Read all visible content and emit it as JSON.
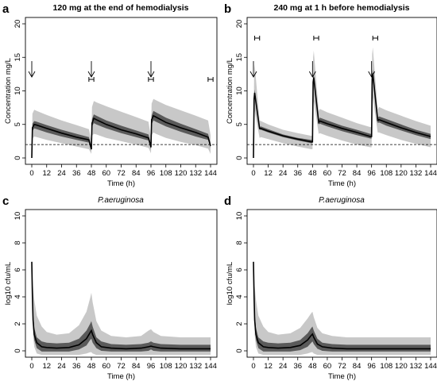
{
  "chart_data": [
    {
      "id": "a",
      "panel_letter": "a",
      "type": "line",
      "title": "120 mg at the end of hemodialysis",
      "title_style": "bold",
      "xlabel": "Time (h)",
      "ylabel": "Concentration mg/L",
      "xlim": [
        0,
        144
      ],
      "ylim": [
        0,
        20
      ],
      "xticks": [
        0,
        12,
        24,
        36,
        48,
        60,
        72,
        84,
        96,
        108,
        120,
        132,
        144
      ],
      "yticks": [
        0,
        5,
        10,
        15,
        20
      ],
      "reference_line": {
        "y": 2,
        "style": "dashed"
      },
      "dose_arrows_x": [
        0,
        48,
        96
      ],
      "dialysis_intervals": [
        [
          46,
          50
        ],
        [
          94,
          98
        ],
        [
          142,
          146
        ]
      ],
      "series": [
        {
          "role": "outer_band",
          "color": "#c8c8c8",
          "x": [
            0,
            0.5,
            2,
            4,
            12,
            24,
            36,
            46,
            48,
            48.5,
            50,
            52,
            60,
            72,
            84,
            94,
            96,
            96.5,
            98,
            100,
            108,
            120,
            132,
            142,
            144
          ],
          "lower": [
            0,
            2.9,
            3.2,
            3.1,
            2.7,
            2.2,
            1.7,
            1.3,
            0.6,
            3.3,
            3.6,
            3.5,
            3.0,
            2.5,
            2.0,
            1.5,
            0.7,
            3.4,
            3.8,
            3.6,
            3.0,
            2.4,
            1.9,
            1.4,
            0.6
          ],
          "upper": [
            0,
            6.6,
            7.2,
            7.0,
            6.4,
            5.6,
            4.9,
            4.3,
            2.5,
            7.6,
            8.5,
            8.3,
            7.7,
            6.9,
            6.1,
            5.4,
            3.0,
            8.1,
            8.8,
            8.6,
            7.9,
            7.1,
            6.3,
            5.6,
            3.4
          ]
        },
        {
          "role": "inner_band",
          "color": "#5a5a5a",
          "x": [
            0,
            0.5,
            2,
            4,
            12,
            24,
            36,
            46,
            48,
            48.5,
            50,
            52,
            60,
            72,
            84,
            94,
            96,
            96.5,
            98,
            100,
            108,
            120,
            132,
            142,
            144
          ],
          "lower": [
            0,
            4.0,
            4.4,
            4.3,
            3.8,
            3.2,
            2.7,
            2.3,
            1.1,
            4.7,
            5.2,
            5.0,
            4.4,
            3.7,
            3.1,
            2.6,
            1.3,
            5.0,
            5.6,
            5.4,
            4.7,
            3.9,
            3.2,
            2.7,
            1.5
          ],
          "upper": [
            0,
            5.1,
            5.5,
            5.4,
            4.9,
            4.2,
            3.6,
            3.1,
            1.6,
            5.8,
            6.5,
            6.3,
            5.6,
            4.8,
            4.1,
            3.5,
            1.9,
            6.3,
            7.0,
            6.8,
            6.0,
            5.1,
            4.3,
            3.6,
            2.1
          ]
        },
        {
          "role": "median",
          "color": "#000000",
          "x": [
            0,
            0.5,
            2,
            4,
            12,
            24,
            36,
            46,
            48,
            48.5,
            50,
            52,
            60,
            72,
            84,
            94,
            96,
            96.5,
            98,
            100,
            108,
            120,
            132,
            142,
            144
          ],
          "y": [
            0,
            4.5,
            5.0,
            4.9,
            4.4,
            3.7,
            3.1,
            2.7,
            1.3,
            5.2,
            5.9,
            5.7,
            5.0,
            4.2,
            3.6,
            3.0,
            1.6,
            5.7,
            6.3,
            6.1,
            5.3,
            4.5,
            3.8,
            3.1,
            1.8
          ]
        }
      ]
    },
    {
      "id": "b",
      "panel_letter": "b",
      "type": "line",
      "title": "240 mg at 1 h before hemodialysis",
      "title_style": "bold",
      "xlabel": "Time (h)",
      "ylabel": "Concentration mg/L",
      "xlim": [
        0,
        144
      ],
      "ylim": [
        0,
        20
      ],
      "xticks": [
        0,
        12,
        24,
        36,
        48,
        60,
        72,
        84,
        96,
        108,
        120,
        132,
        144
      ],
      "yticks": [
        0,
        5,
        10,
        15,
        20
      ],
      "reference_line": {
        "y": 2,
        "style": "dashed"
      },
      "dose_arrows_x": [
        0,
        48,
        96
      ],
      "dialysis_intervals": [
        [
          1,
          5
        ],
        [
          49,
          53
        ],
        [
          97,
          101
        ]
      ],
      "series": [
        {
          "role": "outer_band",
          "color": "#c8c8c8",
          "x": [
            0,
            0.5,
            1,
            5,
            6,
            12,
            24,
            36,
            47,
            48,
            48.5,
            49,
            53,
            54,
            60,
            72,
            84,
            95,
            96,
            96.5,
            97,
            101,
            102,
            108,
            120,
            132,
            144
          ],
          "lower": [
            0,
            5.5,
            7.0,
            3.0,
            3.1,
            2.8,
            2.2,
            1.7,
            1.3,
            1.3,
            7.5,
            8.5,
            3.6,
            3.7,
            3.3,
            2.6,
            2.0,
            1.6,
            1.6,
            8.0,
            9.0,
            3.8,
            3.8,
            3.4,
            2.7,
            2.1,
            1.6
          ],
          "upper": [
            0,
            12.0,
            14.0,
            5.6,
            5.5,
            5.0,
            4.2,
            3.7,
            3.3,
            3.3,
            15.0,
            16.0,
            7.0,
            7.3,
            6.8,
            6.0,
            5.2,
            4.6,
            4.6,
            15.5,
            16.5,
            7.2,
            7.6,
            7.1,
            6.3,
            5.5,
            4.8
          ]
        },
        {
          "role": "inner_band",
          "color": "#5a5a5a",
          "x": [
            0,
            0.5,
            1,
            5,
            6,
            12,
            24,
            36,
            47,
            48,
            48.5,
            49,
            53,
            54,
            60,
            72,
            84,
            95,
            96,
            96.5,
            97,
            101,
            102,
            108,
            120,
            132,
            144
          ],
          "lower": [
            0,
            8.3,
            9.2,
            4.2,
            4.2,
            3.8,
            3.1,
            2.6,
            2.2,
            2.2,
            10.5,
            11.3,
            5.0,
            5.1,
            4.7,
            4.0,
            3.4,
            2.9,
            2.9,
            11.0,
            11.8,
            5.2,
            5.3,
            4.8,
            4.1,
            3.4,
            2.8
          ],
          "upper": [
            0,
            9.3,
            10.2,
            4.6,
            4.7,
            4.3,
            3.5,
            3.0,
            2.7,
            2.7,
            12.0,
            12.5,
            5.7,
            6.0,
            5.6,
            4.8,
            4.2,
            3.6,
            3.6,
            12.5,
            13.2,
            6.0,
            6.2,
            5.8,
            5.0,
            4.2,
            3.6
          ]
        },
        {
          "role": "median",
          "color": "#000000",
          "x": [
            0,
            0.5,
            1,
            5,
            6,
            12,
            24,
            36,
            47,
            48,
            48.5,
            49,
            53,
            54,
            60,
            72,
            84,
            95,
            96,
            96.5,
            97,
            101,
            102,
            108,
            120,
            132,
            144
          ],
          "y": [
            0,
            8.8,
            9.7,
            4.4,
            4.4,
            4.0,
            3.3,
            2.8,
            2.4,
            2.4,
            11.3,
            12.0,
            5.3,
            5.5,
            5.1,
            4.4,
            3.8,
            3.2,
            3.2,
            11.8,
            12.6,
            5.6,
            5.7,
            5.3,
            4.5,
            3.8,
            3.2
          ]
        }
      ]
    },
    {
      "id": "c",
      "panel_letter": "c",
      "type": "line",
      "title": "P.aeruginosa",
      "title_style": "italic",
      "xlabel": "Time (h)",
      "ylabel": "log10 cfu/mL",
      "xlim": [
        0,
        144
      ],
      "ylim": [
        0,
        10
      ],
      "xticks": [
        0,
        12,
        24,
        36,
        48,
        60,
        72,
        84,
        96,
        108,
        120,
        132,
        144
      ],
      "yticks": [
        0,
        2,
        4,
        6,
        8,
        10
      ],
      "series": [
        {
          "role": "outer_band",
          "color": "#c8c8c8",
          "x": [
            0,
            0.5,
            1,
            2,
            4,
            8,
            12,
            20,
            30,
            38,
            44,
            47,
            48,
            49,
            52,
            56,
            64,
            76,
            88,
            94,
            96,
            98,
            104,
            120,
            144
          ],
          "lower": [
            6.6,
            3.0,
            1.2,
            0.3,
            -0.2,
            -0.3,
            -0.3,
            -0.3,
            -0.3,
            -0.3,
            -0.2,
            -0.1,
            -0.1,
            -0.2,
            -0.3,
            -0.3,
            -0.3,
            -0.3,
            -0.3,
            -0.3,
            -0.3,
            -0.3,
            -0.3,
            -0.3,
            -0.3
          ],
          "upper": [
            6.6,
            5.5,
            4.8,
            3.8,
            2.6,
            1.8,
            1.4,
            1.2,
            1.3,
            1.9,
            2.9,
            3.9,
            4.3,
            3.6,
            2.2,
            1.5,
            1.1,
            1.0,
            1.1,
            1.5,
            1.6,
            1.4,
            1.1,
            1.0,
            1.0
          ]
        },
        {
          "role": "inner_band",
          "color": "#5a5a5a",
          "x": [
            0,
            0.5,
            1,
            2,
            4,
            8,
            12,
            20,
            30,
            38,
            44,
            47,
            48,
            49,
            52,
            56,
            64,
            76,
            88,
            94,
            96,
            98,
            104,
            120,
            144
          ],
          "lower": [
            6.6,
            3.6,
            1.8,
            0.8,
            0.2,
            -0.05,
            -0.05,
            -0.05,
            -0.05,
            0.1,
            0.4,
            0.8,
            0.9,
            0.6,
            0.2,
            0.0,
            -0.05,
            -0.05,
            -0.05,
            0.0,
            0.1,
            0.0,
            -0.05,
            -0.05,
            -0.05
          ],
          "upper": [
            6.6,
            4.4,
            2.9,
            1.7,
            1.0,
            0.7,
            0.6,
            0.55,
            0.6,
            0.9,
            1.5,
            2.0,
            2.2,
            1.8,
            1.0,
            0.7,
            0.5,
            0.45,
            0.5,
            0.6,
            0.7,
            0.6,
            0.5,
            0.45,
            0.45
          ]
        },
        {
          "role": "median",
          "color": "#000000",
          "x": [
            0,
            0.5,
            1,
            2,
            4,
            8,
            12,
            20,
            30,
            38,
            44,
            47,
            48,
            49,
            52,
            56,
            64,
            76,
            88,
            94,
            96,
            98,
            104,
            120,
            144
          ],
          "y": [
            6.6,
            4.0,
            2.3,
            1.2,
            0.6,
            0.3,
            0.25,
            0.2,
            0.25,
            0.45,
            0.9,
            1.35,
            1.5,
            1.2,
            0.6,
            0.3,
            0.2,
            0.15,
            0.2,
            0.3,
            0.35,
            0.3,
            0.2,
            0.15,
            0.15
          ]
        }
      ]
    },
    {
      "id": "d",
      "panel_letter": "d",
      "type": "line",
      "title": "P.aeruginosa",
      "title_style": "italic",
      "xlabel": "Time (h)",
      "ylabel": "log10 cfu/mL",
      "xlim": [
        0,
        144
      ],
      "ylim": [
        0,
        10
      ],
      "xticks": [
        0,
        12,
        24,
        36,
        48,
        60,
        72,
        84,
        96,
        108,
        120,
        132,
        144
      ],
      "yticks": [
        0,
        2,
        4,
        6,
        8,
        10
      ],
      "series": [
        {
          "role": "outer_band",
          "color": "#c8c8c8",
          "x": [
            0,
            0.5,
            1,
            2,
            4,
            8,
            12,
            20,
            30,
            38,
            44,
            47,
            48,
            49,
            52,
            56,
            64,
            76,
            88,
            94,
            96,
            98,
            104,
            120,
            144
          ],
          "lower": [
            6.6,
            3.0,
            1.2,
            0.3,
            -0.2,
            -0.3,
            -0.3,
            -0.3,
            -0.3,
            -0.3,
            -0.2,
            -0.1,
            -0.1,
            -0.2,
            -0.3,
            -0.3,
            -0.3,
            -0.3,
            -0.3,
            -0.3,
            -0.3,
            -0.3,
            -0.3,
            -0.3,
            -0.3
          ],
          "upper": [
            6.6,
            5.5,
            4.8,
            3.8,
            2.6,
            1.8,
            1.4,
            1.2,
            1.3,
            1.7,
            2.4,
            2.8,
            2.9,
            2.5,
            1.7,
            1.3,
            1.1,
            1.0,
            1.0,
            1.0,
            1.0,
            1.0,
            1.0,
            1.0,
            1.0
          ]
        },
        {
          "role": "inner_band",
          "color": "#5a5a5a",
          "x": [
            0,
            0.5,
            1,
            2,
            4,
            8,
            12,
            20,
            30,
            38,
            44,
            47,
            48,
            49,
            52,
            56,
            64,
            76,
            88,
            94,
            96,
            98,
            104,
            120,
            144
          ],
          "lower": [
            6.6,
            3.6,
            1.8,
            0.8,
            0.2,
            -0.05,
            -0.05,
            -0.05,
            -0.05,
            0.05,
            0.3,
            0.6,
            0.7,
            0.5,
            0.15,
            0.0,
            -0.05,
            -0.05,
            -0.05,
            -0.05,
            -0.05,
            -0.05,
            -0.05,
            -0.05,
            -0.05
          ],
          "upper": [
            6.6,
            4.4,
            2.9,
            1.7,
            1.0,
            0.7,
            0.6,
            0.55,
            0.6,
            0.8,
            1.3,
            1.7,
            1.8,
            1.5,
            0.9,
            0.6,
            0.5,
            0.45,
            0.45,
            0.45,
            0.45,
            0.45,
            0.45,
            0.45,
            0.45
          ]
        },
        {
          "role": "median",
          "color": "#000000",
          "x": [
            0,
            0.5,
            1,
            2,
            4,
            8,
            12,
            20,
            30,
            38,
            44,
            47,
            48,
            49,
            52,
            56,
            64,
            76,
            88,
            94,
            96,
            98,
            104,
            120,
            144
          ],
          "y": [
            6.6,
            4.0,
            2.3,
            1.2,
            0.6,
            0.3,
            0.25,
            0.2,
            0.25,
            0.4,
            0.8,
            1.15,
            1.25,
            1.0,
            0.5,
            0.3,
            0.2,
            0.15,
            0.15,
            0.15,
            0.15,
            0.15,
            0.15,
            0.15,
            0.15
          ]
        }
      ]
    }
  ]
}
